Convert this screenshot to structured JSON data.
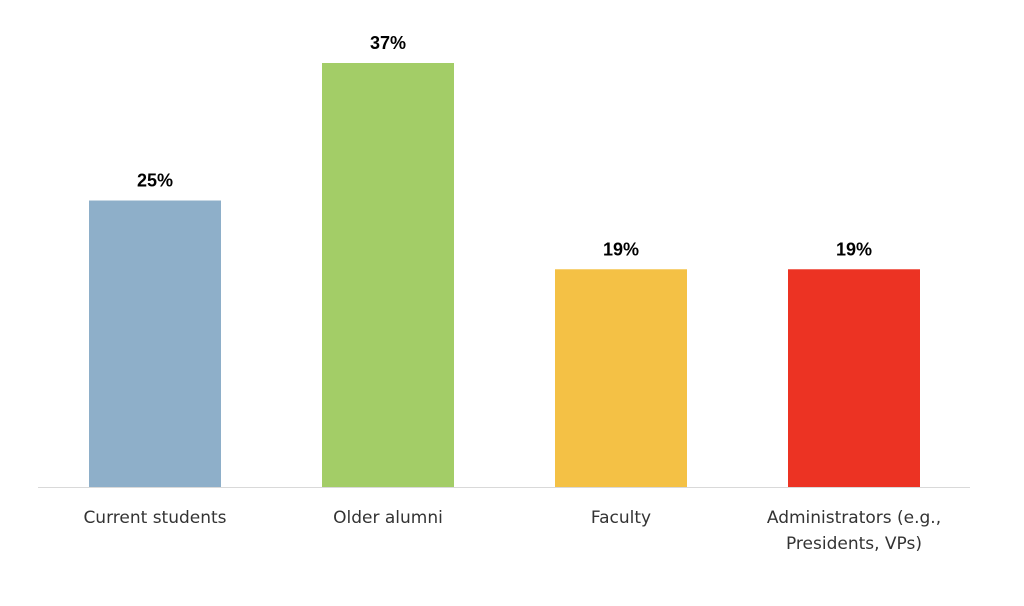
{
  "chart_data": {
    "type": "bar",
    "categories": [
      [
        "Current students"
      ],
      [
        "Older alumni"
      ],
      [
        "Faculty"
      ],
      [
        "Administrators (e.g.,",
        "Presidents, VPs)"
      ]
    ],
    "values": [
      25,
      37,
      19,
      19
    ],
    "value_labels": [
      "25%",
      "37%",
      "19%",
      "19%"
    ],
    "colors": [
      "#8EAFC9",
      "#A3CD67",
      "#F4C145",
      "#EC3323"
    ],
    "ylim": [
      0,
      37
    ],
    "grid": false,
    "legend": "none"
  }
}
